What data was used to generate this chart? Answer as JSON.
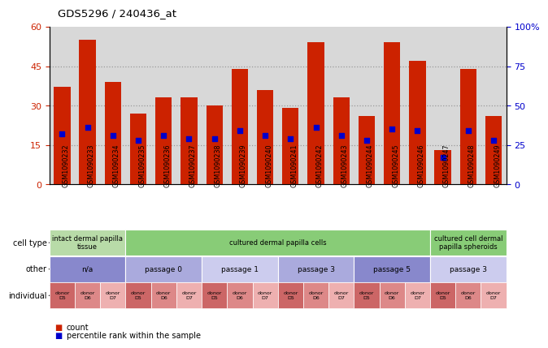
{
  "title": "GDS5296 / 240436_at",
  "samples": [
    "GSM1090232",
    "GSM1090233",
    "GSM1090234",
    "GSM1090235",
    "GSM1090236",
    "GSM1090237",
    "GSM1090238",
    "GSM1090239",
    "GSM1090240",
    "GSM1090241",
    "GSM1090242",
    "GSM1090243",
    "GSM1090244",
    "GSM1090245",
    "GSM1090246",
    "GSM1090247",
    "GSM1090248",
    "GSM1090249"
  ],
  "counts": [
    37,
    55,
    39,
    27,
    33,
    33,
    30,
    44,
    36,
    29,
    54,
    33,
    26,
    54,
    47,
    13,
    44,
    26
  ],
  "percentiles": [
    32,
    36,
    31,
    28,
    31,
    29,
    29,
    34,
    31,
    29,
    36,
    31,
    28,
    35,
    34,
    17,
    34,
    28
  ],
  "bar_color": "#cc2200",
  "dot_color": "#0000cc",
  "ylim_left": [
    0,
    60
  ],
  "ylim_right": [
    0,
    100
  ],
  "yticks_left": [
    0,
    15,
    30,
    45,
    60
  ],
  "yticks_right": [
    0,
    25,
    50,
    75,
    100
  ],
  "ytick_labels_right": [
    "0",
    "25",
    "50",
    "75",
    "100%"
  ],
  "cell_type_groups": [
    {
      "label": "intact dermal papilla\ntissue",
      "start": 0,
      "end": 3,
      "color": "#b8dba8"
    },
    {
      "label": "cultured dermal papilla cells",
      "start": 3,
      "end": 15,
      "color": "#88cc77"
    },
    {
      "label": "cultured cell dermal\npapilla spheroids",
      "start": 15,
      "end": 18,
      "color": "#88cc77"
    }
  ],
  "other_groups": [
    {
      "label": "n/a",
      "start": 0,
      "end": 3,
      "color": "#8888cc"
    },
    {
      "label": "passage 0",
      "start": 3,
      "end": 6,
      "color": "#aaaadd"
    },
    {
      "label": "passage 1",
      "start": 6,
      "end": 9,
      "color": "#ccccee"
    },
    {
      "label": "passage 3",
      "start": 9,
      "end": 12,
      "color": "#aaaadd"
    },
    {
      "label": "passage 5",
      "start": 12,
      "end": 15,
      "color": "#8888cc"
    },
    {
      "label": "passage 3",
      "start": 15,
      "end": 18,
      "color": "#ccccee"
    }
  ],
  "individual_colors": [
    "#cc6666",
    "#dd8888",
    "#eeb0b0"
  ],
  "legend_items": [
    {
      "label": "count",
      "color": "#cc2200"
    },
    {
      "label": "percentile rank within the sample",
      "color": "#0000cc"
    }
  ],
  "grid_color": "#888888",
  "bg_color": "#ffffff",
  "axis_bg": "#d8d8d8"
}
